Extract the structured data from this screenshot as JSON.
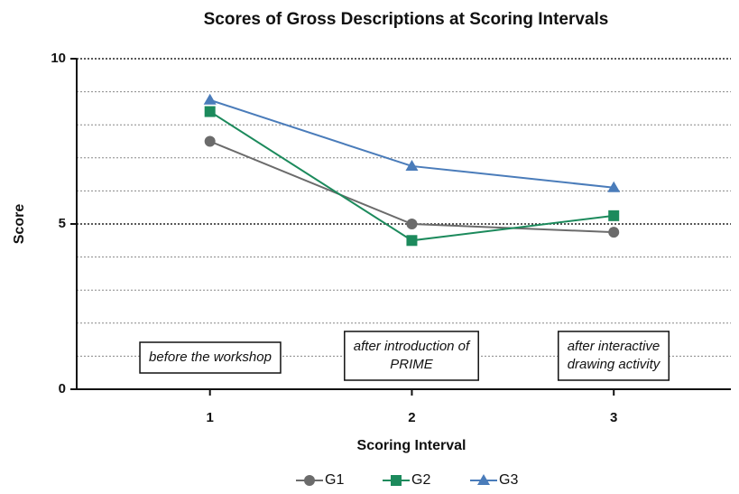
{
  "chart_data": {
    "type": "line",
    "title": "Scores of Gross Descriptions at Scoring Intervals",
    "x_label": "Scoring Interval",
    "y_label": "Score",
    "x": [
      1,
      2,
      3
    ],
    "xlim": [
      0.34,
      3.58
    ],
    "xticks": [
      1,
      2,
      3
    ],
    "ylim": [
      0,
      10
    ],
    "yticks": [
      0,
      5,
      10
    ],
    "minor_yticks": [
      1,
      2,
      3,
      4,
      6,
      7,
      8,
      9
    ],
    "grid": true,
    "legend": "bottom",
    "series": [
      {
        "name": "G1",
        "color": "#6b6b6b",
        "marker": "circle",
        "values": [
          7.5,
          5.0,
          4.75
        ]
      },
      {
        "name": "G2",
        "color": "#1c8a5c",
        "marker": "square",
        "values": [
          8.4,
          4.5,
          5.25
        ]
      },
      {
        "name": "G3",
        "color": "#4a7cba",
        "marker": "triangle",
        "values": [
          8.75,
          6.75,
          6.1
        ]
      }
    ],
    "annotations": [
      [
        "before the workshop"
      ],
      [
        "after introduction of",
        "PRIME"
      ],
      [
        "after interactive",
        "drawing activity"
      ]
    ]
  }
}
